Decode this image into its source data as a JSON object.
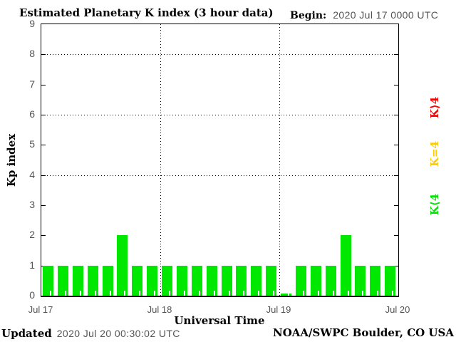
{
  "header": {
    "title": "Estimated Planetary K index (3 hour data)",
    "begin_label": "Begin:",
    "begin_value": "2020 Jul 17 0000 UTC"
  },
  "y_axis": {
    "label": "Kp index",
    "ticks": [
      "0",
      "1",
      "2",
      "3",
      "4",
      "5",
      "6",
      "7",
      "8",
      "9"
    ]
  },
  "x_axis": {
    "label": "Universal Time",
    "ticks": [
      "Jul 17",
      "Jul 18",
      "Jul 19",
      "Jul 20"
    ]
  },
  "legend": [
    {
      "label": "K⟩4",
      "meaning": "K>4",
      "color": "#ff0000"
    },
    {
      "label": "K=4",
      "meaning": "K=4",
      "color": "#ffcc00"
    },
    {
      "label": "K⟨4",
      "meaning": "K<4",
      "color": "#00e800"
    }
  ],
  "footer": {
    "updated_label": "Updated",
    "updated_value": "2020 Jul 20 00:30:02 UTC",
    "credit": "NOAA/SWPC Boulder, CO USA"
  },
  "chart_data": {
    "type": "bar",
    "title": "Estimated Planetary K index (3 hour data)",
    "xlabel": "Universal Time",
    "ylabel": "Kp index",
    "ylim": [
      0,
      9
    ],
    "x_tick_labels": [
      "Jul 17",
      "Jul 18",
      "Jul 19",
      "Jul 20"
    ],
    "bar_interval_hours": 3,
    "bars_per_day": 8,
    "series": [
      {
        "date": "2020 Jul 17",
        "values": [
          1,
          1,
          1,
          1,
          1,
          2,
          1,
          1
        ]
      },
      {
        "date": "2020 Jul 18",
        "values": [
          1,
          1,
          1,
          1,
          1,
          1,
          1,
          1
        ]
      },
      {
        "date": "2020 Jul 19",
        "values": [
          0,
          1,
          1,
          1,
          2,
          1,
          1,
          1
        ]
      }
    ],
    "values_flat": [
      1,
      1,
      1,
      1,
      1,
      2,
      1,
      1,
      1,
      1,
      1,
      1,
      1,
      1,
      1,
      1,
      0,
      1,
      1,
      1,
      2,
      1,
      1,
      1
    ],
    "gridlines_y": [
      4,
      6,
      8
    ],
    "grid_style": "dotted",
    "bar_color": "#00e800",
    "legend_position": "right-rotated"
  }
}
